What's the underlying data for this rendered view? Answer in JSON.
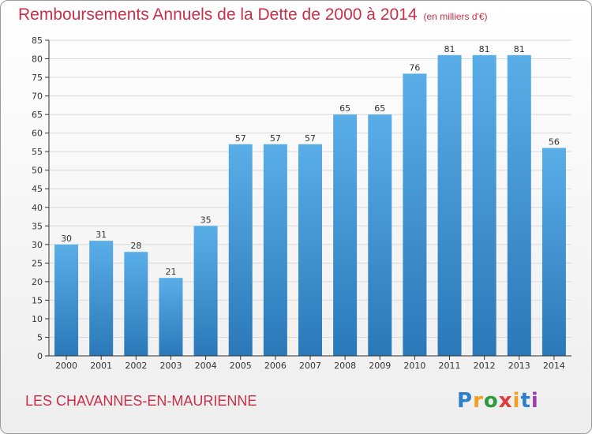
{
  "title": "Remboursements Annuels de la Dette de 2000 à 2014",
  "unit_note": "(en milliers d'€)",
  "commune": "LES CHAVANNES-EN-MAURIENNE",
  "logo": {
    "text": "Proxiti",
    "letter_colors": [
      "#2e7fc9",
      "#f0a020",
      "#2e9a3e",
      "#e03a3a",
      "#f0a020",
      "#2e7fc9",
      "#9b3fb0"
    ]
  },
  "colors": {
    "title": "#c8304a",
    "bar_top": "#5aaee8",
    "bar_bottom": "#2a78b8",
    "axis": "#333333",
    "grid": "#d9d9d9"
  },
  "chart_data": {
    "type": "bar",
    "title": "Remboursements Annuels de la Dette de 2000 à 2014",
    "xlabel": "",
    "ylabel": "",
    "ylim": [
      0,
      85
    ],
    "ytick_step": 5,
    "grid": true,
    "categories": [
      "2000",
      "2001",
      "2002",
      "2003",
      "2004",
      "2005",
      "2006",
      "2007",
      "2008",
      "2009",
      "2010",
      "2011",
      "2012",
      "2013",
      "2014"
    ],
    "values": [
      30,
      31,
      28,
      21,
      35,
      57,
      57,
      57,
      65,
      65,
      76,
      81,
      81,
      81,
      56
    ]
  }
}
